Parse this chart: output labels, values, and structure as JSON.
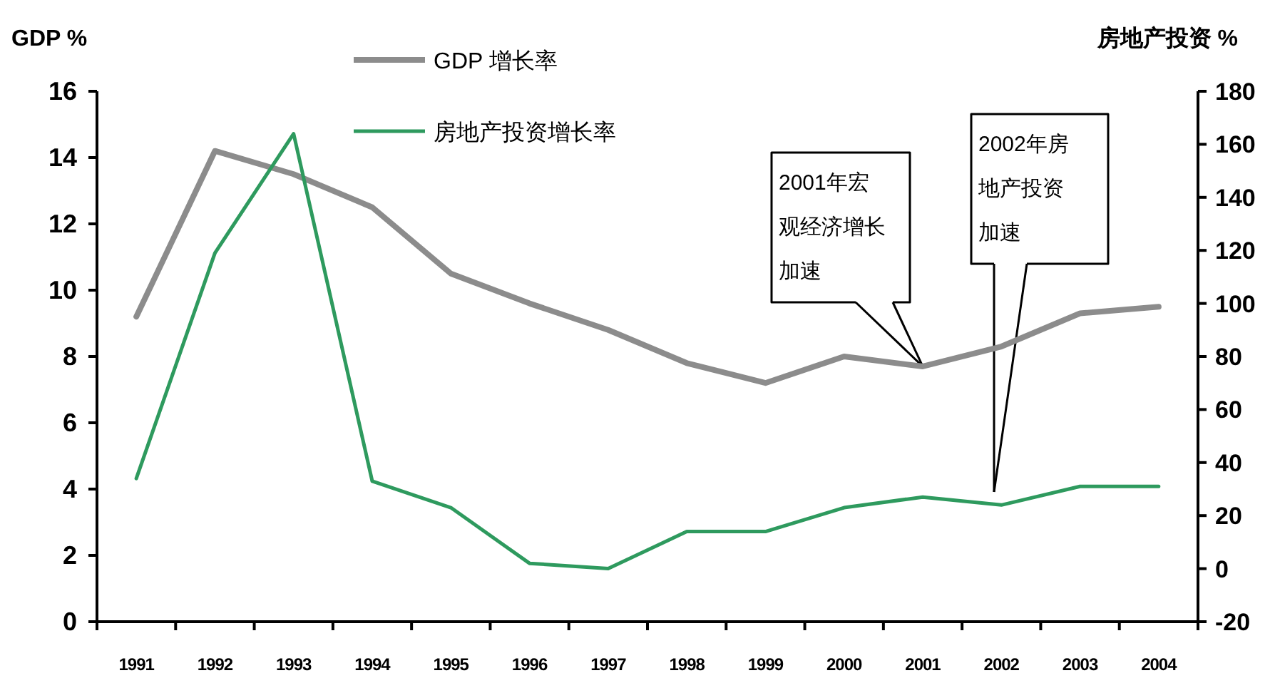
{
  "chart_data": {
    "type": "line",
    "categories": [
      "1991",
      "1992",
      "1993",
      "1994",
      "1995",
      "1996",
      "1997",
      "1998",
      "1999",
      "2000",
      "2001",
      "2002",
      "2003",
      "2004"
    ],
    "ylabel": "GDP %",
    "y2label": "房地产投资 %",
    "ylim": [
      0,
      16
    ],
    "yticks": [
      0,
      2,
      4,
      6,
      8,
      10,
      12,
      14,
      16
    ],
    "y2lim": [
      -20,
      180
    ],
    "y2ticks": [
      -20,
      0,
      20,
      40,
      60,
      80,
      100,
      120,
      140,
      160,
      180
    ],
    "legend": "top",
    "grid": false,
    "series": [
      {
        "name": "GDP 增长率",
        "color": "#8c8c8c",
        "values": [
          9.2,
          14.2,
          13.5,
          12.5,
          10.5,
          9.6,
          8.8,
          7.8,
          7.2,
          8.0,
          7.7,
          8.3,
          9.3,
          9.5
        ]
      },
      {
        "name": "房地产投资增长率",
        "color": "#2e9a5e",
        "axis": "y2",
        "values": [
          34,
          119,
          164,
          33,
          23,
          2,
          0,
          14,
          14,
          23,
          27,
          24,
          31,
          31
        ]
      }
    ],
    "annotations": [
      {
        "text": "2001年宏观经济增长加速",
        "x": "2001",
        "y": 7.7
      },
      "2002年房地产投资加速"
    ]
  }
}
